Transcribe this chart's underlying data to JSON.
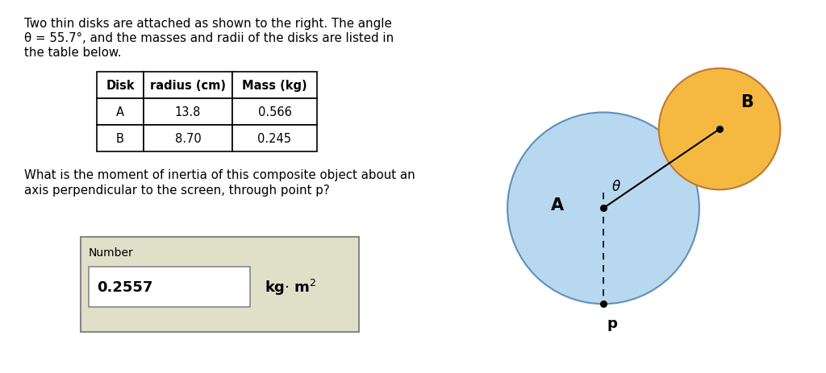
{
  "bg_color": "#ffffff",
  "text_intro_line1": "Two thin disks are attached as shown to the right. The angle",
  "text_intro_line2": "θ = 55.7°, and the masses and radii of the disks are listed in",
  "text_intro_line3": "the table below.",
  "table_headers": [
    "Disk",
    "radius (cm)",
    "Mass (kg)"
  ],
  "table_rows": [
    [
      "A",
      "13.8",
      "0.566"
    ],
    [
      "B",
      "8.70",
      "0.245"
    ]
  ],
  "question_text": "What is the moment of inertia of this composite object about an\naxis perpendicular to the screen, through point p?",
  "answer_label": "Number",
  "answer_value": "0.2557",
  "disk_A_color": "#b8d8f0",
  "disk_A_border": "#6090b8",
  "disk_B_color": "#f5b942",
  "disk_B_border": "#c07830",
  "label_A": "A",
  "label_B": "B",
  "label_p": "p",
  "label_theta": "θ",
  "theta_deg": 55.7,
  "answer_box_bg": "#e0dfc8",
  "answer_input_bg": "#ffffff",
  "rA_scaled": 1.5,
  "rB_scaled": 0.95,
  "dist_AB_scaled": 2.2
}
